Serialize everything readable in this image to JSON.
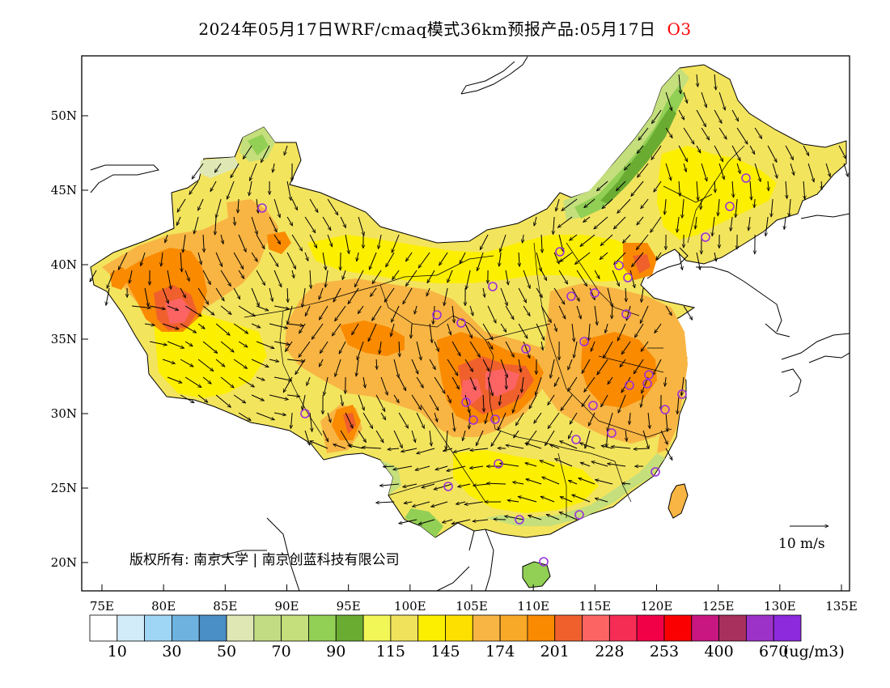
{
  "title": {
    "main": "2024年05月17日WRF/cmaq模式36km预报产品:05月17日",
    "pollutant": "O3"
  },
  "map": {
    "lon_range": [
      73,
      135
    ],
    "lat_range": [
      18,
      54
    ],
    "lon_ticks": [
      "75E",
      "80E",
      "85E",
      "90E",
      "95E",
      "100E",
      "105E",
      "110E",
      "115E",
      "120E",
      "125E",
      "130E",
      "135E"
    ],
    "lat_ticks": [
      "20N",
      "25N",
      "30N",
      "35N",
      "40N",
      "45N",
      "50N"
    ],
    "copyright": "版权所有: 南京大学 | 南京创蓝科技有限公司",
    "wind_scale_label": "10 m/s",
    "station_color": "#9b30d9"
  },
  "colorbar": {
    "colors": [
      "#ffffff",
      "#d2ecfa",
      "#a0d6f5",
      "#6eb2e0",
      "#4a8fc6",
      "#dfe8b5",
      "#c2dc84",
      "#c4df7c",
      "#92cf55",
      "#6aab32",
      "#f2f758",
      "#f1e25c",
      "#fdef00",
      "#fee000",
      "#f8b543",
      "#f9a928",
      "#fa8a00",
      "#f0602d",
      "#fc6464",
      "#f52d55",
      "#f20047",
      "#fa0000",
      "#c81780",
      "#a8305c",
      "#9d32c8",
      "#8c2adc"
    ],
    "labels": [
      "10",
      "30",
      "50",
      "70",
      "90",
      "115",
      "145",
      "174",
      "201",
      "228",
      "253",
      "400",
      "670"
    ],
    "unit": "(ug/m3)"
  }
}
